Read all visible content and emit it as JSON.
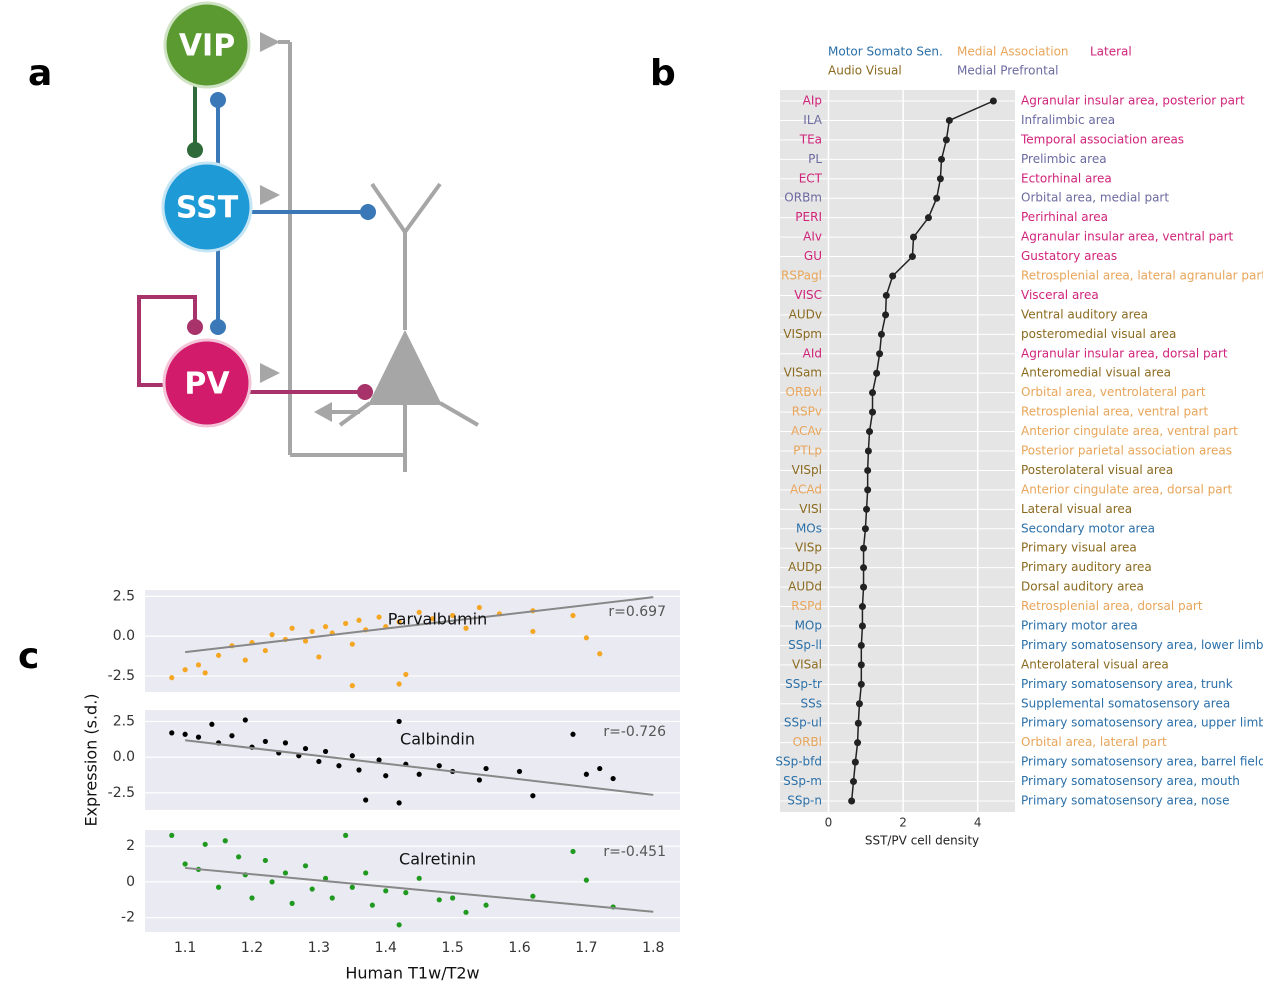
{
  "panel_labels": [
    "a",
    "b",
    "c"
  ],
  "diagram": {
    "nodes": [
      {
        "label": "VIP"
      },
      {
        "label": "SST"
      },
      {
        "label": "PV"
      }
    ]
  },
  "chart_data": [
    {
      "type": "line",
      "categories": [
        "AIp",
        "ILA",
        "TEa",
        "PL",
        "ECT",
        "ORBm",
        "PERI",
        "AIv",
        "GU",
        "RSPagl",
        "VISC",
        "AUDv",
        "VISpm",
        "AId",
        "VISam",
        "ORBvl",
        "RSPv",
        "ACAv",
        "PTLp",
        "VISpl",
        "ACAd",
        "VISl",
        "MOs",
        "VISp",
        "AUDp",
        "AUDd",
        "RSPd",
        "MOp",
        "SSp-ll",
        "VISal",
        "SSp-tr",
        "SSs",
        "SSp-ul",
        "ORBl",
        "SSp-bfd",
        "SSp-m",
        "SSp-n"
      ],
      "labels": [
        "Agranular insular area, posterior part",
        "Infralimbic area",
        "Temporal association areas",
        "Prelimbic area",
        "Ectorhinal area",
        "Orbital area, medial part",
        "Perirhinal area",
        "Agranular insular area, ventral part",
        "Gustatory areas",
        "Retrosplenial area, lateral agranular part",
        "Visceral area",
        "Ventral auditory area",
        "posteromedial visual area",
        "Agranular insular area, dorsal part",
        "Anteromedial visual area",
        "Orbital area, ventrolateral part",
        "Retrosplenial area, ventral part",
        "Anterior cingulate area, ventral part",
        "Posterior parietal association areas",
        "Posterolateral visual area",
        "Anterior cingulate area, dorsal part",
        "Lateral visual area",
        "Secondary motor area",
        "Primary visual area",
        "Primary auditory area",
        "Dorsal auditory area",
        "Retrosplenial area, dorsal part",
        "Primary motor area",
        "Primary somatosensory area, lower limb",
        "Anterolateral visual area",
        "Primary somatosensory area, trunk",
        "Supplemental somatosensory area",
        "Primary somatosensory area, upper limb",
        "Orbital area, lateral part",
        "Primary somatosensory area, barrel field",
        "Primary somatosensory area, mouth",
        "Primary somatosensory area, nose"
      ],
      "category_colors": [
        "#d0237a",
        "#6b6aa0",
        "#d0237a",
        "#6b6aa0",
        "#d0237a",
        "#6b6aa0",
        "#d0237a",
        "#d0237a",
        "#d0237a",
        "#e8a55a",
        "#d0237a",
        "#8b6a1f",
        "#8b6a1f",
        "#d0237a",
        "#8b6a1f",
        "#e8a55a",
        "#e8a55a",
        "#e8a55a",
        "#e8a55a",
        "#8b6a1f",
        "#e8a55a",
        "#8b6a1f",
        "#2a6fa8",
        "#8b6a1f",
        "#8b6a1f",
        "#8b6a1f",
        "#e8a55a",
        "#2a6fa8",
        "#2a6fa8",
        "#8b6a1f",
        "#2a6fa8",
        "#2a6fa8",
        "#2a6fa8",
        "#e8a55a",
        "#2a6fa8",
        "#2a6fa8",
        "#2a6fa8"
      ],
      "values": [
        4.42,
        3.24,
        3.16,
        3.03,
        3.0,
        2.9,
        2.68,
        2.28,
        2.25,
        1.72,
        1.55,
        1.53,
        1.42,
        1.37,
        1.29,
        1.18,
        1.18,
        1.1,
        1.07,
        1.05,
        1.05,
        1.02,
        0.99,
        0.94,
        0.94,
        0.94,
        0.91,
        0.91,
        0.88,
        0.88,
        0.88,
        0.83,
        0.8,
        0.78,
        0.72,
        0.67,
        0.62
      ],
      "color": "#222222",
      "legend": [
        {
          "name": "Motor Somato Sen.",
          "color": "#2a6fa8"
        },
        {
          "name": "Medial Association",
          "color": "#e8a55a"
        },
        {
          "name": "Lateral",
          "color": "#d0237a"
        },
        {
          "name": "Audio Visual",
          "color": "#8b6a1f"
        },
        {
          "name": "Medial Prefrontal",
          "color": "#6b6aa0"
        }
      ],
      "xlabel": "SST/PV cell density",
      "xlim": [
        -1.3,
        5
      ],
      "xticks": [
        0,
        2,
        4
      ],
      "grid": true
    },
    {
      "type": "scatter",
      "title": "Parvalbumin",
      "annotation": "r=0.697",
      "color": "#f5a623",
      "x": [
        1.08,
        1.1,
        1.12,
        1.13,
        1.15,
        1.17,
        1.19,
        1.2,
        1.22,
        1.23,
        1.25,
        1.26,
        1.28,
        1.29,
        1.3,
        1.31,
        1.32,
        1.34,
        1.35,
        1.36,
        1.37,
        1.39,
        1.4,
        1.42,
        1.43,
        1.45,
        1.47,
        1.5,
        1.52,
        1.54,
        1.57,
        1.62,
        1.62,
        1.68,
        1.7,
        1.72,
        1.35,
        1.42
      ],
      "y": [
        -2.6,
        -2.1,
        -1.8,
        -2.3,
        -1.2,
        -0.6,
        -1.5,
        -0.4,
        -0.9,
        0.1,
        -0.2,
        0.5,
        -0.3,
        0.3,
        -1.3,
        0.6,
        0.2,
        0.8,
        -0.5,
        1.0,
        0.4,
        1.2,
        0.6,
        0.9,
        -2.4,
        1.5,
        1.1,
        1.3,
        0.5,
        1.8,
        1.4,
        1.6,
        0.3,
        1.3,
        -0.1,
        -1.1,
        -3.1,
        -3.0
      ],
      "fit": {
        "x": [
          1.1,
          1.8
        ],
        "y": [
          -1.0,
          2.45
        ]
      },
      "fit_color": "#888888",
      "xlim": [
        1.04,
        1.84
      ],
      "ylim": [
        -3.5,
        2.9
      ],
      "yticks": [
        2.5,
        {
          "value": 0,
          "label": "0.0"
        },
        -2.5
      ],
      "grid": true
    },
    {
      "type": "scatter",
      "title": "Calbindin",
      "annotation": "r=-0.726",
      "color": "#000000",
      "x": [
        1.08,
        1.1,
        1.12,
        1.14,
        1.15,
        1.17,
        1.19,
        1.2,
        1.22,
        1.24,
        1.25,
        1.27,
        1.28,
        1.3,
        1.31,
        1.33,
        1.35,
        1.36,
        1.37,
        1.39,
        1.4,
        1.42,
        1.42,
        1.43,
        1.45,
        1.48,
        1.5,
        1.54,
        1.55,
        1.6,
        1.62,
        1.68,
        1.7,
        1.72,
        1.74
      ],
      "y": [
        1.7,
        1.6,
        1.4,
        2.3,
        1.0,
        1.5,
        2.6,
        0.7,
        1.1,
        0.3,
        1.0,
        0.1,
        0.6,
        -0.3,
        0.4,
        -0.6,
        0.1,
        -0.9,
        -3.0,
        -0.2,
        -1.3,
        2.5,
        -3.2,
        -0.5,
        -1.2,
        -0.6,
        -1.0,
        -1.6,
        -0.8,
        -1.0,
        -2.7,
        1.6,
        -1.2,
        -0.8,
        -1.5
      ],
      "fit": {
        "x": [
          1.1,
          1.8
        ],
        "y": [
          1.18,
          -2.64
        ]
      },
      "fit_color": "#888888",
      "ylabel": "Expression (s.d.)",
      "xlim": [
        1.04,
        1.84
      ],
      "ylim": [
        -3.7,
        3.3
      ],
      "yticks": [
        2.5,
        {
          "value": 0,
          "label": "0.0"
        },
        -2.5
      ],
      "grid": true
    },
    {
      "type": "scatter",
      "title": "Calretinin",
      "annotation": "r=-0.451",
      "color": "#1f9a1f",
      "x": [
        1.08,
        1.1,
        1.12,
        1.13,
        1.15,
        1.16,
        1.18,
        1.19,
        1.2,
        1.22,
        1.23,
        1.25,
        1.26,
        1.28,
        1.29,
        1.31,
        1.32,
        1.34,
        1.35,
        1.37,
        1.38,
        1.4,
        1.42,
        1.43,
        1.45,
        1.48,
        1.5,
        1.52,
        1.55,
        1.62,
        1.68,
        1.7,
        1.74
      ],
      "y": [
        2.6,
        1.0,
        0.7,
        2.1,
        -0.3,
        2.3,
        1.4,
        0.4,
        -0.9,
        1.2,
        0.0,
        0.5,
        -1.2,
        0.9,
        -0.4,
        0.2,
        -0.9,
        2.6,
        -0.3,
        0.5,
        -1.3,
        -0.5,
        -2.4,
        -0.6,
        0.2,
        -1.0,
        -0.9,
        -1.7,
        -1.3,
        -0.8,
        1.7,
        0.1,
        -1.4
      ],
      "fit": {
        "x": [
          1.1,
          1.8
        ],
        "y": [
          0.78,
          -1.67
        ]
      },
      "fit_color": "#888888",
      "xlabel": "Human T1w/T2w",
      "xlim": [
        1.04,
        1.84
      ],
      "ylim": [
        -2.8,
        2.9
      ],
      "yticks": [
        2,
        0,
        -2
      ],
      "xticks": [
        1.1,
        1.2,
        1.3,
        1.4,
        1.5,
        1.6,
        1.7,
        1.8
      ],
      "grid": true
    }
  ]
}
